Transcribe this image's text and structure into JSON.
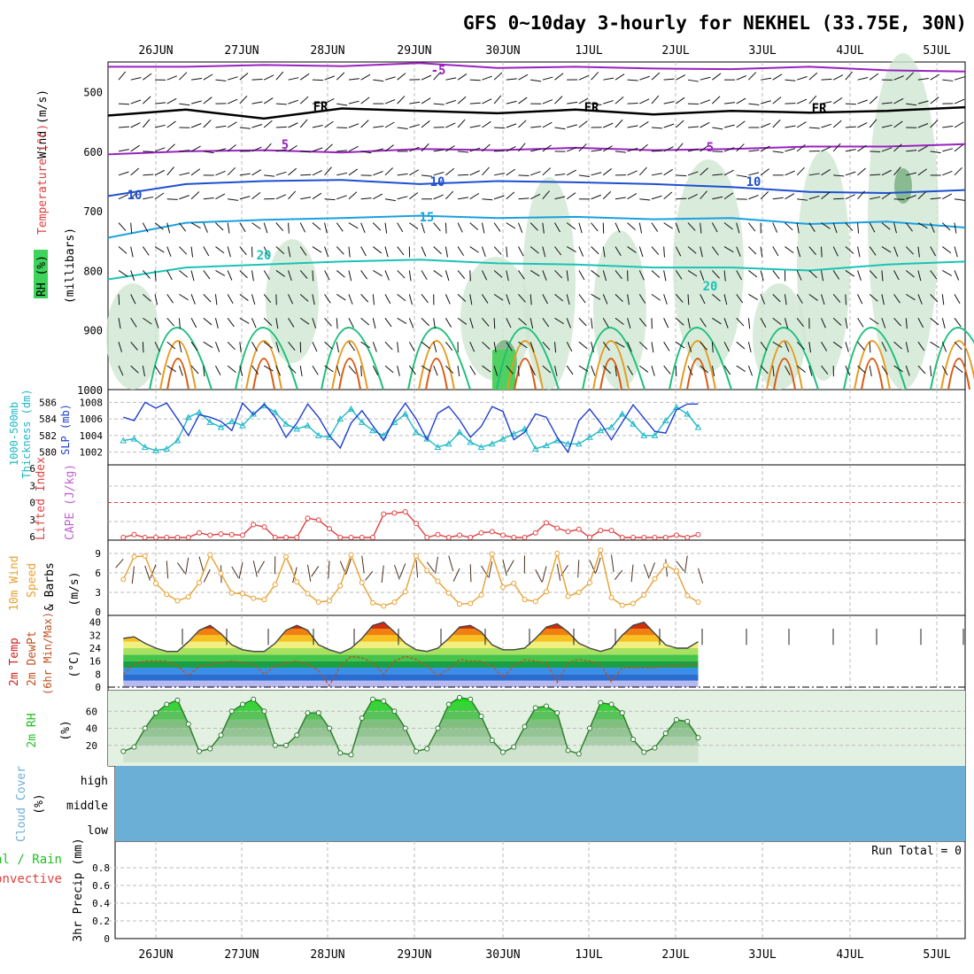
{
  "title": "GFS 0~10day 3-hourly for NEKHEL (33.75E, 30N)",
  "dates": [
    "26JUN",
    "27JUN",
    "28JUN",
    "29JUN",
    "30JUN",
    "1JUL",
    "2JUL",
    "3JUL",
    "4JUL",
    "5JUL"
  ],
  "colors": {
    "purple": "#9a22c0",
    "black": "#000000",
    "blue": "#1f4fd0",
    "lightblue": "#1aa0e0",
    "teal": "#19c3b5",
    "green": "#1fbf7a",
    "orange": "#e59a20",
    "darkorange": "#d85a10",
    "rh_fill": "#cfe7d2",
    "slp": "#1f3fd0",
    "thickness": "#1fb8c8",
    "li": "#e04040",
    "cape": "#c060d0",
    "wind10": "#e8a030",
    "temp": "#d02020",
    "dew": "#c05020",
    "rh2m": "#20c020",
    "cloud": "#6baed6"
  },
  "panel_labels": {
    "upper": {
      "wind": "Wind (m/s)",
      "temp": "Temperature (°C)",
      "rh": "RH (%)",
      "pressure_unit": "(millibars)"
    },
    "slp_thick": {
      "thick": "1000-500mb",
      "thick2": "Thickness (dm)",
      "slp": "SLP (mb)"
    },
    "li_cape": {
      "li": "Lifted Index",
      "cape": "CAPE (J/kg)"
    },
    "wind10": {
      "line1": "10m Wind",
      "line2": "Speed",
      "line3": "& Barbs",
      "unit": "(m/s)"
    },
    "temp2m": {
      "line1": "2m Temp",
      "line2": "2m DewPt",
      "line3": "(6hr Min/Max)",
      "unit": "(°C)"
    },
    "rh2m": {
      "line1": "2m RH",
      "unit": "(%)"
    },
    "cloud": {
      "line1": "Cloud Cover",
      "unit": "(%)",
      "high": "high",
      "middle": "middle",
      "low": "low"
    },
    "precip": {
      "line1": "Total / Rain",
      "line2": "Convective",
      "line3": "3hr Precip (mm)",
      "run_total": "Run Total = 0"
    }
  },
  "chart_data": [
    {
      "type": "line",
      "title": "Upper air: wind, temperature, RH",
      "ylabel": "(millibars)",
      "y_ticks": [
        "500",
        "600",
        "700",
        "800",
        "900",
        "1000"
      ],
      "contour_labels": [
        "-5",
        "FR",
        "FR",
        "FR",
        "5",
        "5",
        "10",
        "10",
        "10",
        "15",
        "20",
        "20"
      ],
      "series": [
        {
          "name": "-5",
          "pressure_mb": [
            458,
            458,
            455,
            457,
            452,
            460,
            458,
            461,
            462,
            458,
            464,
            466
          ]
        },
        {
          "name": "FR",
          "pressure_mb": [
            540,
            530,
            545,
            528,
            532,
            536,
            530,
            538,
            532,
            535,
            532,
            526
          ]
        },
        {
          "name": "5",
          "pressure_mb": [
            605,
            600,
            598,
            602,
            596,
            598,
            594,
            598,
            596,
            592,
            592,
            588
          ]
        },
        {
          "name": "10",
          "pressure_mb": [
            675,
            655,
            650,
            648,
            655,
            650,
            652,
            655,
            660,
            668,
            670,
            665
          ]
        },
        {
          "name": "15",
          "pressure_mb": [
            745,
            720,
            715,
            712,
            708,
            712,
            710,
            714,
            712,
            722,
            718,
            728
          ]
        },
        {
          "name": "20",
          "pressure_mb": [
            815,
            795,
            790,
            785,
            782,
            788,
            790,
            795,
            795,
            800,
            790,
            785
          ]
        }
      ]
    },
    {
      "type": "line",
      "title": "SLP and 1000-500mb thickness",
      "slp_axis_ticks": [
        1002,
        1004,
        1006,
        1008
      ],
      "thickness_axis_ticks": [
        580,
        582,
        584,
        586
      ],
      "series": [
        {
          "name": "SLP (mb)",
          "values": [
            1006.2,
            1005.8,
            1008.0,
            1007.3,
            1007.9,
            1006.0,
            1004.0,
            1006.5,
            1006.2,
            1005.7,
            1004.6,
            1007.9,
            1006.5,
            1007.8,
            1006.2,
            1003.8,
            1005.5,
            1007.8,
            1006.2,
            1004.0,
            1002.5,
            1005.5,
            1007.0,
            1005.2,
            1003.4,
            1006.0,
            1007.9,
            1006.0,
            1003.5,
            1006.7,
            1007.5,
            1005.9,
            1003.8,
            1005.1,
            1007.5,
            1006.9,
            1003.5,
            1004.4,
            1006.6,
            1006.2,
            1003.8,
            1002.0,
            1005.8,
            1007.2,
            1005.5,
            1003.5,
            1005.6,
            1007.7,
            1006.1,
            1004.5,
            1004.3,
            1007.1,
            1007.8,
            1007.8
          ]
        },
        {
          "name": "Thickness (dm)",
          "values": [
            581.4,
            581.6,
            580.6,
            580.2,
            580.4,
            581.4,
            584.2,
            584.8,
            583.6,
            583.0,
            583.7,
            583.2,
            584.6,
            585.6,
            584.8,
            583.4,
            582.8,
            583.2,
            582.0,
            581.8,
            584.0,
            585.2,
            583.6,
            582.6,
            582.0,
            583.6,
            584.6,
            582.4,
            581.6,
            580.6,
            581.0,
            582.4,
            581.2,
            580.6,
            581.0,
            581.6,
            582.2,
            582.8,
            580.4,
            580.8,
            581.4,
            581.0,
            581.0,
            581.8,
            582.6,
            583.0,
            584.6,
            583.4,
            582.0,
            582.0,
            583.8,
            585.4,
            584.6,
            583.0
          ]
        }
      ]
    },
    {
      "type": "line",
      "title": "Lifted Index / CAPE",
      "y_ticks": [
        "6",
        "3",
        "0",
        "3",
        "6"
      ],
      "series": [
        {
          "name": "Lifted Index",
          "values": [
            6.0,
            5.5,
            6.0,
            6.0,
            6.0,
            6.0,
            6.0,
            5.2,
            5.6,
            5.4,
            5.5,
            5.6,
            3.8,
            4.2,
            6.0,
            6.0,
            6.0,
            2.7,
            3.0,
            4.5,
            6.0,
            6.0,
            6.0,
            6.0,
            2.0,
            1.8,
            1.6,
            3.6,
            6.0,
            5.5,
            6.0,
            5.6,
            6.0,
            5.2,
            5.0,
            5.6,
            6.0,
            6.0,
            5.2,
            3.5,
            4.4,
            5.0,
            4.6,
            6.0,
            4.8,
            4.8,
            6.0,
            6.0,
            6.0,
            6.0,
            6.0,
            5.6,
            6.0,
            5.5
          ]
        }
      ]
    },
    {
      "type": "line",
      "title": "10m Wind Speed & Barbs",
      "ylabel": "(m/s)",
      "y_ticks": [
        0,
        3,
        6,
        9
      ],
      "series": [
        {
          "name": "10m Wind Speed",
          "values": [
            5.0,
            8.5,
            8.6,
            4.4,
            2.7,
            1.7,
            2.3,
            4.5,
            8.8,
            5.9,
            2.9,
            2.8,
            2.1,
            1.9,
            4.2,
            8.5,
            4.6,
            2.8,
            1.5,
            1.7,
            4.0,
            8.8,
            4.5,
            1.4,
            0.9,
            1.5,
            3.1,
            8.6,
            6.4,
            4.7,
            2.9,
            1.2,
            1.3,
            2.6,
            8.9,
            3.8,
            4.4,
            1.9,
            1.6,
            3.1,
            9.0,
            2.4,
            3.0,
            4.5,
            9.5,
            2.2,
            1.0,
            1.3,
            2.6,
            5.1,
            7.2,
            6.3,
            2.5,
            1.5
          ]
        }
      ]
    },
    {
      "type": "area",
      "title": "2m Temp / 2m DewPt",
      "ylabel": "(°C)",
      "y_ticks": [
        0,
        8,
        16,
        24,
        32,
        40
      ],
      "series": [
        {
          "name": "2m Temp",
          "values": [
            30,
            31,
            27,
            24,
            22,
            22,
            28,
            35,
            38,
            33,
            26,
            23,
            22,
            22,
            27,
            35,
            38,
            35,
            26,
            23,
            21,
            24,
            30,
            38,
            40,
            34,
            27,
            23,
            22,
            24,
            30,
            37,
            38,
            34,
            26,
            23,
            23,
            24,
            30,
            37,
            39,
            34,
            27,
            24,
            22,
            24,
            32,
            38,
            40,
            33,
            26,
            24,
            24,
            28
          ]
        },
        {
          "name": "2m DewPt",
          "values": [
            8,
            14,
            16,
            16,
            16,
            13,
            7,
            13,
            14,
            15,
            16,
            15,
            14,
            8,
            13,
            15,
            16,
            14,
            10,
            1,
            13,
            19,
            18,
            15,
            8,
            16,
            19,
            17,
            13,
            7,
            11,
            17,
            16,
            16,
            13,
            6,
            13,
            17,
            16,
            15,
            3,
            15,
            17,
            16,
            14,
            3,
            12,
            12,
            12,
            12,
            13,
            13,
            14,
            14
          ]
        }
      ]
    },
    {
      "type": "area",
      "title": "2m RH",
      "ylabel": "(%)",
      "y_ticks": [
        20,
        40,
        60
      ],
      "series": [
        {
          "name": "2m RH",
          "values": [
            13,
            18,
            40,
            58,
            68,
            73,
            45,
            13,
            16,
            32,
            60,
            68,
            74,
            60,
            20,
            20,
            32,
            58,
            58,
            40,
            11,
            9,
            52,
            74,
            72,
            60,
            40,
            13,
            16,
            40,
            68,
            76,
            74,
            54,
            26,
            12,
            18,
            42,
            64,
            66,
            58,
            14,
            10,
            40,
            70,
            68,
            58,
            27,
            12,
            17,
            34,
            50,
            48,
            29
          ]
        }
      ]
    },
    {
      "type": "area",
      "title": "Cloud Cover",
      "ylabel": "(%)",
      "categories": [
        "high",
        "middle",
        "low"
      ],
      "values": [
        100,
        100,
        100
      ]
    },
    {
      "type": "bar",
      "title": "3hr Precip (mm)",
      "ylabel": "3hr Precip (mm)",
      "y_ticks": [
        "0",
        "0.2",
        "0.4",
        "0.6",
        "0.8"
      ],
      "ylim": [
        0,
        1
      ],
      "values": [],
      "run_total": "Run Total = 0"
    }
  ]
}
